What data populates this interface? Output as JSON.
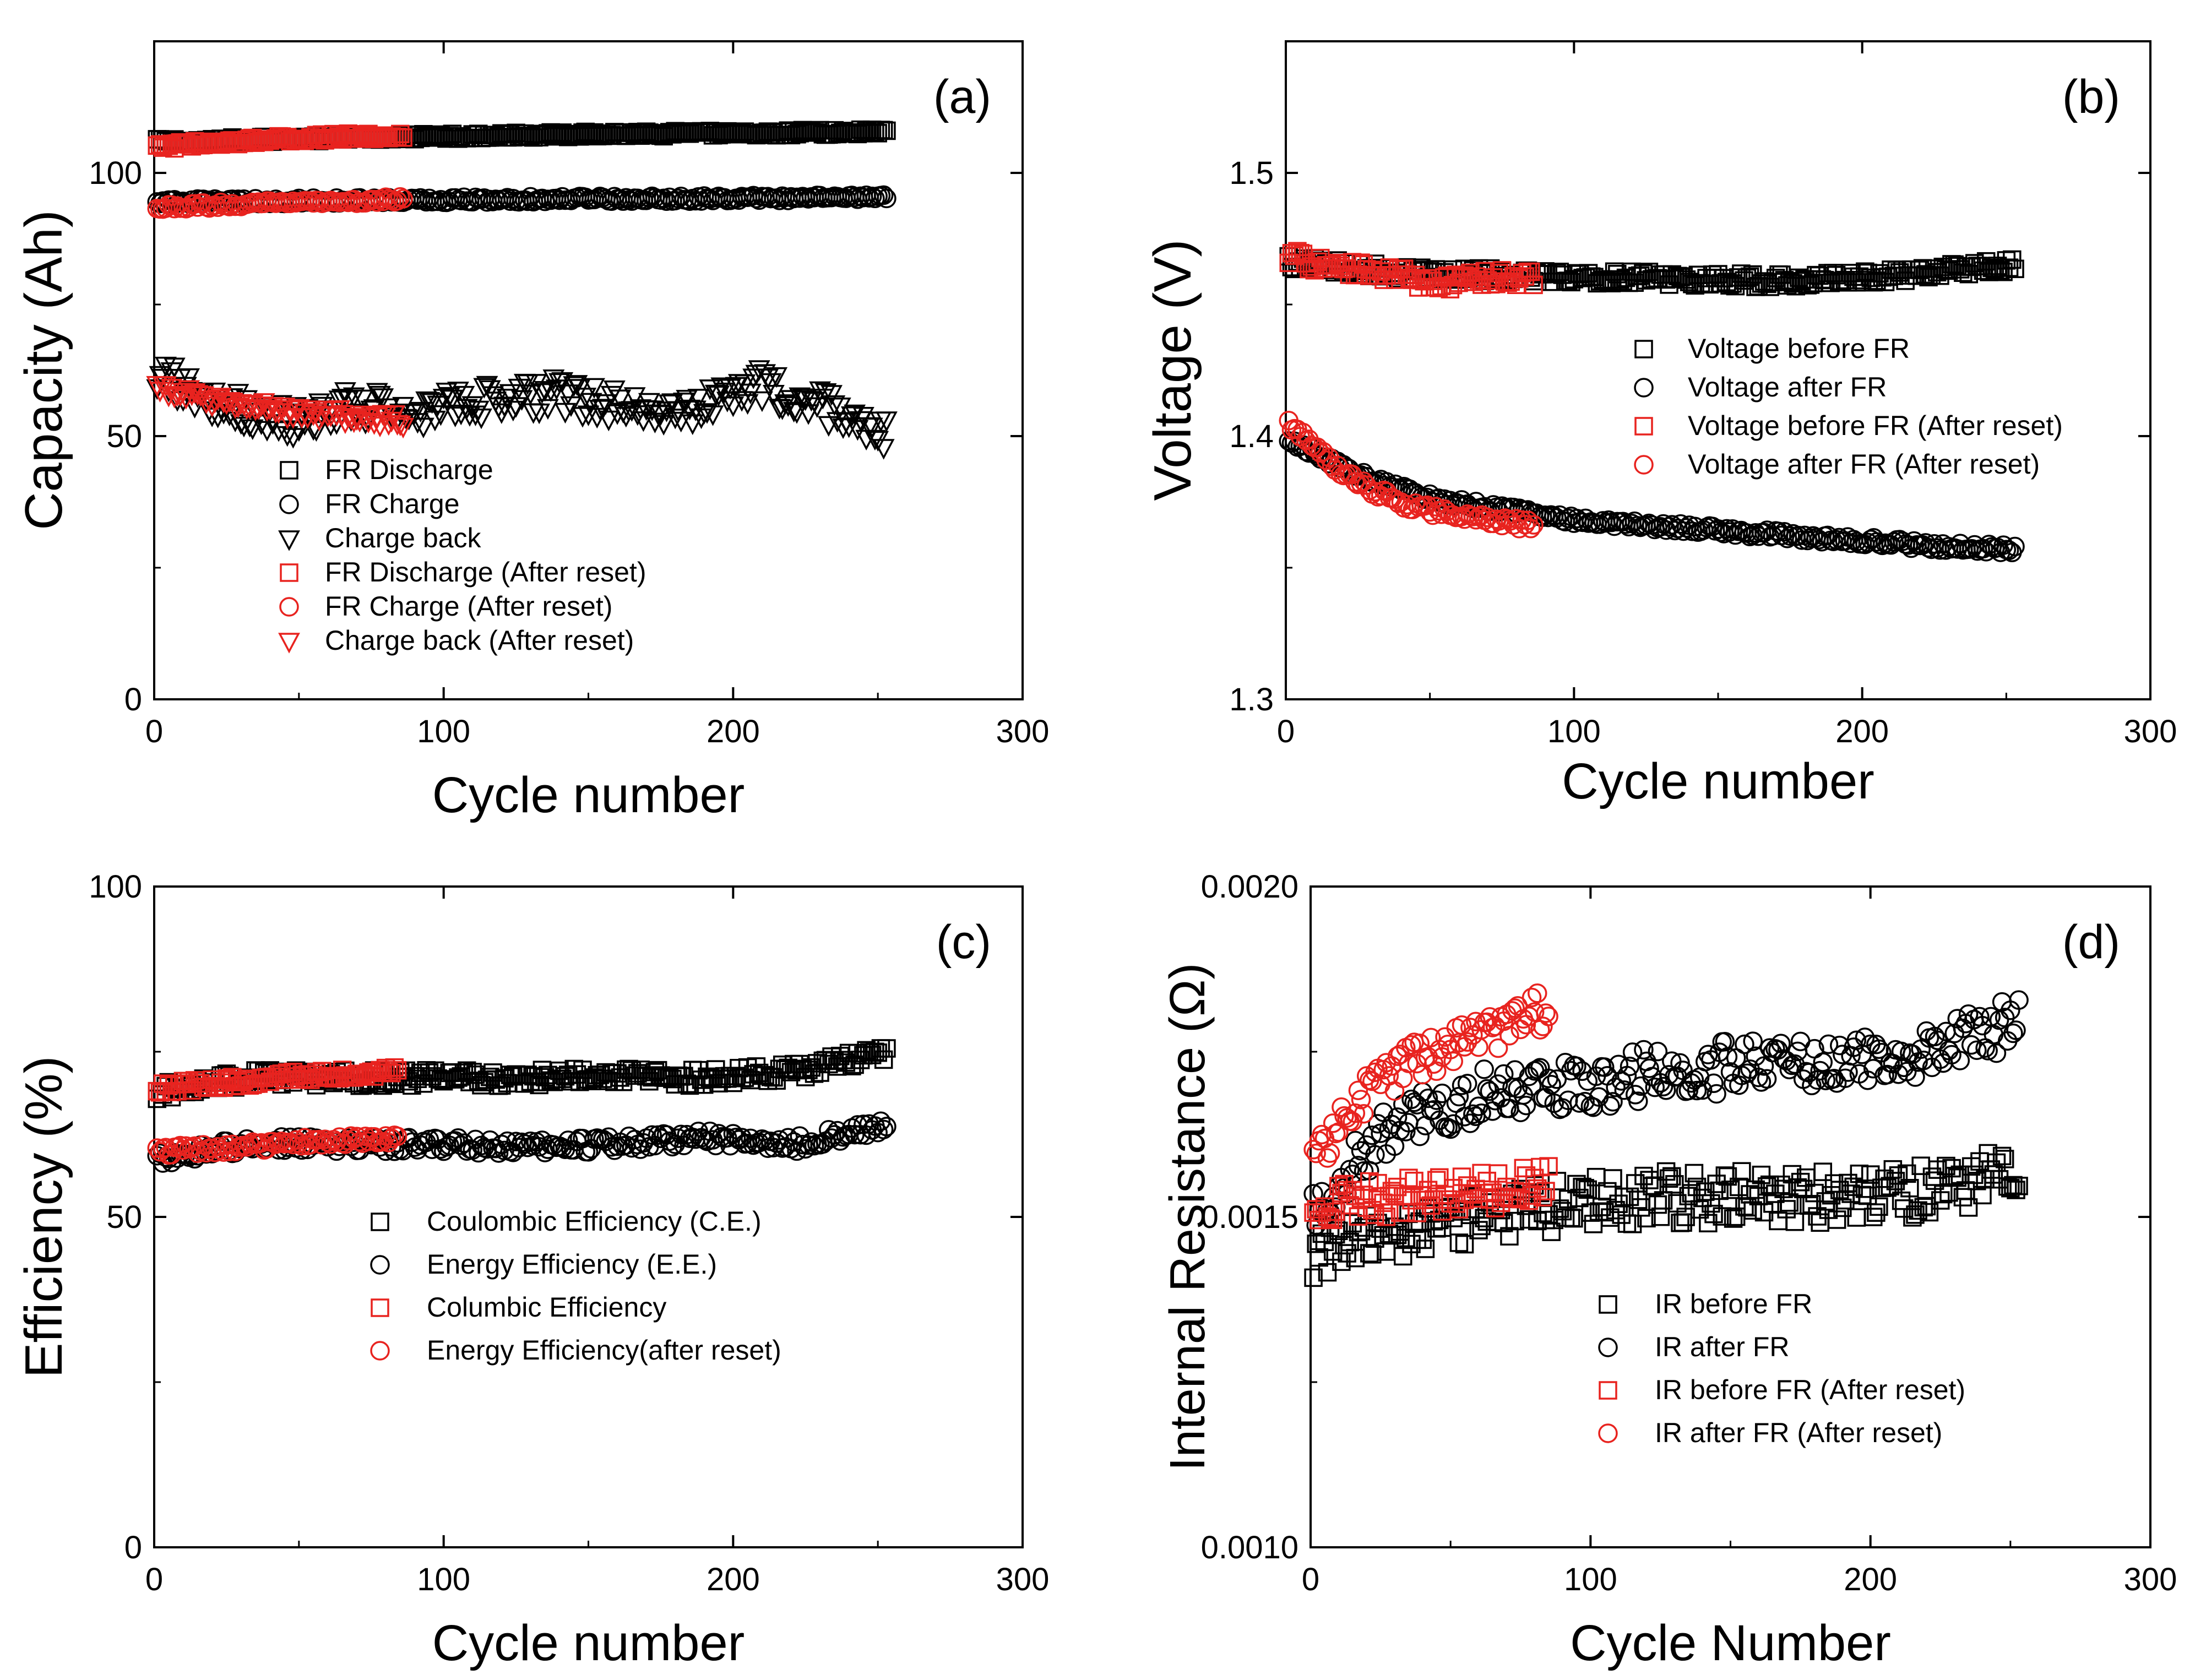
{
  "colors": {
    "black": "#000000",
    "red": "#e8231f"
  },
  "chart_data": [
    {
      "type": "scatter",
      "panel": "(a)",
      "xlabel": "Cycle number",
      "ylabel": "Capacity (Ah)",
      "xlim": [
        0,
        300
      ],
      "ylim": [
        0,
        125
      ],
      "xticks": [
        0,
        100,
        200,
        300
      ],
      "yticks": [
        0,
        50,
        100
      ],
      "legend_position": "bottom-left",
      "series": [
        {
          "name": "FR Discharge",
          "marker": "square",
          "color": "black",
          "x_start": 1,
          "x_end": 253,
          "step": 1,
          "base": [
            106,
            107.2,
            107.8
          ],
          "jitter": 0.5
        },
        {
          "name": "FR Charge",
          "marker": "circle",
          "color": "black",
          "x_start": 1,
          "x_end": 253,
          "step": 1,
          "base": [
            94.5,
            95,
            95.3
          ],
          "jitter": 0.5
        },
        {
          "name": "Charge back",
          "marker": "triangle-down",
          "color": "black",
          "x_start": 1,
          "x_end": 253,
          "step": 1,
          "base": [
            62,
            56,
            53,
            56,
            55,
            57,
            58,
            56,
            55,
            60,
            56,
            50
          ],
          "jitter": 3.2
        },
        {
          "name": "FR Discharge (After reset)",
          "marker": "square",
          "color": "red",
          "x_start": 1,
          "x_end": 86,
          "step": 1,
          "base": [
            105,
            106.5,
            107.2
          ],
          "jitter": 0.6
        },
        {
          "name": "FR Charge (After reset)",
          "marker": "circle",
          "color": "red",
          "x_start": 1,
          "x_end": 86,
          "step": 1,
          "base": [
            93.5,
            94.3,
            95
          ],
          "jitter": 0.5
        },
        {
          "name": "Charge back (After reset)",
          "marker": "triangle-down",
          "color": "red",
          "x_start": 1,
          "x_end": 86,
          "step": 1,
          "base": [
            59,
            57,
            55,
            54,
            53
          ],
          "jitter": 1.3
        }
      ]
    },
    {
      "type": "scatter",
      "panel": "(b)",
      "xlabel": "Cycle number",
      "ylabel": "Voltage (V)",
      "xlim": [
        0,
        300
      ],
      "ylim": [
        1.3,
        1.55
      ],
      "xticks": [
        0,
        100,
        200,
        300
      ],
      "yticks": [
        1.3,
        1.4,
        1.5
      ],
      "legend_position": "middle-right",
      "series": [
        {
          "name": "Voltage before FR",
          "marker": "square",
          "color": "black",
          "x_start": 1,
          "x_end": 253,
          "step": 1,
          "base": [
            1.466,
            1.462,
            1.461,
            1.46,
            1.459,
            1.461,
            1.465
          ],
          "jitter": 0.0025
        },
        {
          "name": "Voltage after FR",
          "marker": "circle",
          "color": "black",
          "x_start": 1,
          "x_end": 253,
          "step": 1,
          "base": [
            1.398,
            1.385,
            1.376,
            1.372,
            1.368,
            1.366,
            1.364,
            1.362,
            1.36,
            1.358,
            1.357
          ],
          "jitter": 0.0015
        },
        {
          "name": "Voltage before FR (After reset)",
          "marker": "square",
          "color": "red",
          "x_start": 1,
          "x_end": 86,
          "step": 1,
          "base": [
            1.468,
            1.464,
            1.462,
            1.458,
            1.46,
            1.46
          ],
          "jitter": 0.003
        },
        {
          "name": "Voltage after FR (After reset)",
          "marker": "circle",
          "color": "red",
          "x_start": 1,
          "x_end": 86,
          "step": 1,
          "base": [
            1.405,
            1.39,
            1.38,
            1.373,
            1.37,
            1.368,
            1.366
          ],
          "jitter": 0.002
        }
      ]
    },
    {
      "type": "scatter",
      "panel": "(c)",
      "xlabel": "Cycle number",
      "ylabel": "Efficiency (%)",
      "xlim": [
        0,
        300
      ],
      "ylim": [
        0,
        100
      ],
      "xticks": [
        0,
        100,
        200,
        300
      ],
      "yticks": [
        0,
        50,
        100
      ],
      "legend_position": "middle-center",
      "series": [
        {
          "name": "Coulombic Efficiency (C.E.)",
          "marker": "square",
          "color": "black",
          "x_start": 1,
          "x_end": 253,
          "step": 1,
          "base": [
            69,
            71,
            71,
            71,
            71,
            71.5,
            71,
            72,
            75
          ],
          "jitter": 1.2
        },
        {
          "name": "Energy Efficiency (E.E.)",
          "marker": "circle",
          "color": "black",
          "x_start": 1,
          "x_end": 253,
          "step": 1,
          "base": [
            59,
            61,
            61,
            61,
            60.5,
            61,
            62,
            61,
            64
          ],
          "jitter": 1.1
        },
        {
          "name": "Columbic Efficiency",
          "marker": "square",
          "color": "red",
          "x_start": 1,
          "x_end": 84,
          "step": 1,
          "base": [
            69.5,
            70.5,
            71.5,
            72
          ],
          "jitter": 0.8
        },
        {
          "name": "Energy Efficiency(after reset)",
          "marker": "circle",
          "color": "red",
          "x_start": 1,
          "x_end": 84,
          "step": 1,
          "base": [
            60,
            60.5,
            61.5,
            62
          ],
          "jitter": 0.7
        }
      ]
    },
    {
      "type": "scatter",
      "panel": "(d)",
      "xlabel": "Cycle Number",
      "ylabel": "Internal Resistance (Ω)",
      "xlim": [
        0,
        300
      ],
      "ylim": [
        0.001,
        0.002
      ],
      "xticks": [
        0,
        100,
        200,
        300
      ],
      "yticks": [
        "0.0010",
        "0.0015",
        "0.0020"
      ],
      "legend_position": "bottom-right",
      "series": [
        {
          "name": "IR before FR",
          "marker": "square",
          "color": "black",
          "x_start": 1,
          "x_end": 253,
          "step": 1,
          "base": [
            0.00144,
            0.00148,
            0.0015,
            0.00152,
            0.00153,
            0.00153,
            0.00153,
            0.00154,
            0.00157
          ],
          "jitter": 4e-05
        },
        {
          "name": "IR after FR",
          "marker": "circle",
          "color": "black",
          "x_start": 1,
          "x_end": 253,
          "step": 1,
          "base": [
            0.00152,
            0.00165,
            0.00169,
            0.0017,
            0.00172,
            0.00173,
            0.00174,
            0.00175,
            0.0018
          ],
          "jitter": 4e-05
        },
        {
          "name": "IR before FR (After reset)",
          "marker": "square",
          "color": "red",
          "x_start": 1,
          "x_end": 85,
          "step": 1,
          "base": [
            0.00152,
            0.00153,
            0.00154,
            0.00155
          ],
          "jitter": 3e-05
        },
        {
          "name": "IR after FR (After reset)",
          "marker": "circle",
          "color": "red",
          "x_start": 1,
          "x_end": 85,
          "step": 1,
          "base": [
            0.00158,
            0.00168,
            0.00173,
            0.00176,
            0.00178,
            0.00182
          ],
          "jitter": 3e-05
        }
      ]
    }
  ]
}
